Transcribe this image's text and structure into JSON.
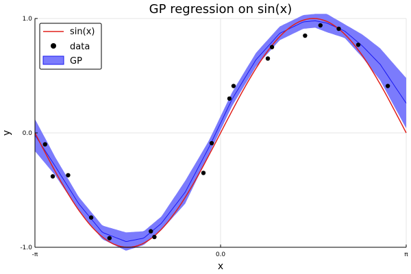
{
  "chart_data": {
    "type": "line",
    "title": "GP regression on sin(x)",
    "xlabel": "x",
    "ylabel": "y",
    "xlim": [
      -3.14159,
      3.14159
    ],
    "ylim": [
      -1.0,
      1.0
    ],
    "xticks": [
      {
        "value": -3.14159,
        "label": "-π"
      },
      {
        "value": 0.0,
        "label": "0.0"
      },
      {
        "value": 3.14159,
        "label": "π"
      }
    ],
    "yticks": [
      {
        "value": -1.0,
        "label": "-1.0"
      },
      {
        "value": 0.0,
        "label": "0.0"
      },
      {
        "value": 1.0,
        "label": "1.0"
      }
    ],
    "grid": true,
    "legend_position": "top-left",
    "series": [
      {
        "name": "sin(x)",
        "kind": "line",
        "color": "#e0201b",
        "function": "sin"
      },
      {
        "name": "data",
        "kind": "scatter",
        "color": "#000000",
        "points": [
          [
            -2.97,
            -0.1
          ],
          [
            -2.84,
            -0.38
          ],
          [
            -2.58,
            -0.37
          ],
          [
            -2.19,
            -0.74
          ],
          [
            -1.88,
            -0.92
          ],
          [
            -1.18,
            -0.86
          ],
          [
            -1.12,
            -0.91
          ],
          [
            -0.29,
            -0.35
          ],
          [
            -0.15,
            -0.09
          ],
          [
            0.15,
            0.3
          ],
          [
            0.22,
            0.41
          ],
          [
            0.8,
            0.65
          ],
          [
            0.87,
            0.75
          ],
          [
            1.43,
            0.85
          ],
          [
            1.69,
            0.94
          ],
          [
            2.0,
            0.91
          ],
          [
            2.33,
            0.77
          ],
          [
            2.83,
            0.41
          ]
        ]
      },
      {
        "name": "GP",
        "kind": "band",
        "color": "#7b7bfc",
        "mean_color": "#1a1af0",
        "x": [
          -3.14,
          -2.8,
          -2.4,
          -2.0,
          -1.6,
          -1.3,
          -1.0,
          -0.6,
          -0.2,
          0.2,
          0.6,
          1.0,
          1.4,
          1.6,
          1.8,
          2.1,
          2.4,
          2.7,
          3.14
        ],
        "mean": [
          -0.02,
          -0.29,
          -0.62,
          -0.87,
          -0.95,
          -0.92,
          -0.79,
          -0.52,
          -0.13,
          0.3,
          0.64,
          0.87,
          0.97,
          0.98,
          0.96,
          0.89,
          0.76,
          0.6,
          0.26
        ],
        "std": [
          0.07,
          0.04,
          0.03,
          0.03,
          0.04,
          0.03,
          0.03,
          0.05,
          0.03,
          0.03,
          0.03,
          0.03,
          0.03,
          0.03,
          0.04,
          0.03,
          0.05,
          0.07,
          0.11
        ]
      }
    ]
  }
}
